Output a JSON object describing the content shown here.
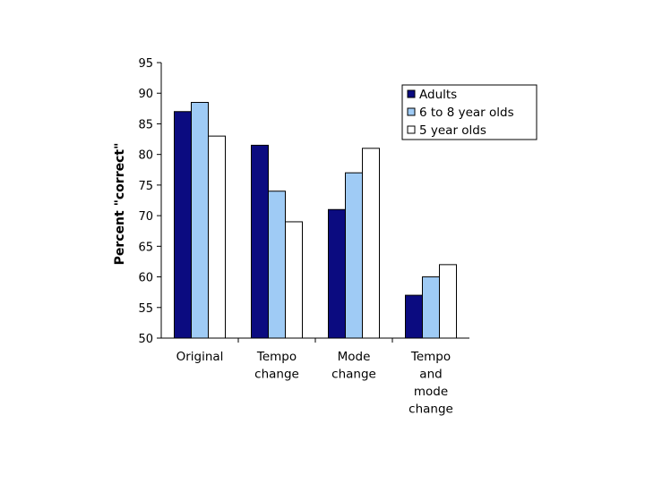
{
  "chart_data": {
    "type": "bar",
    "title": "",
    "xlabel": "",
    "ylabel": "Percent \"correct\"",
    "ylim": [
      50,
      95
    ],
    "yticks": [
      50,
      55,
      60,
      65,
      70,
      75,
      80,
      85,
      90,
      95
    ],
    "grid": false,
    "legend_position": "top-right",
    "categories": [
      [
        "Original"
      ],
      [
        "Tempo",
        "change"
      ],
      [
        "Mode",
        "change"
      ],
      [
        "Tempo",
        "and",
        "mode",
        "change"
      ]
    ],
    "series": [
      {
        "name": "Adults",
        "color": "#0b0b80",
        "values": [
          87,
          81.5,
          71,
          57
        ]
      },
      {
        "name": "6 to 8 year olds",
        "color": "#9fcbf5",
        "values": [
          88.5,
          74,
          77,
          60
        ]
      },
      {
        "name": "5 year olds",
        "color": "#ffffff",
        "values": [
          83,
          69,
          81,
          62
        ]
      }
    ]
  }
}
